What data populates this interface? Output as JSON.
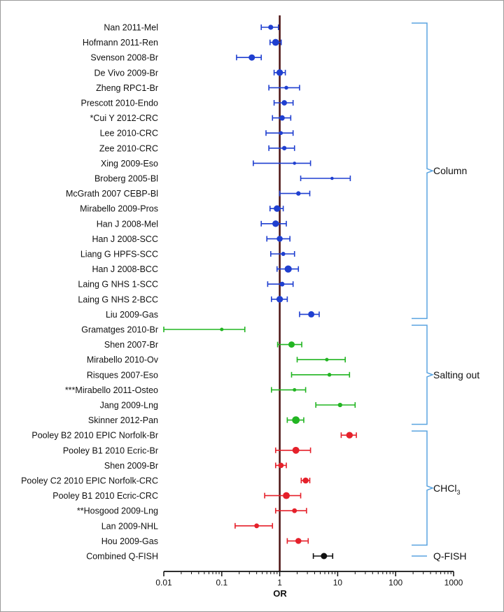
{
  "chart_data": {
    "type": "forest",
    "xlabel": "OR",
    "x_scale": "log",
    "xlim": [
      0.01,
      1000
    ],
    "x_ticks": [
      "0.01",
      "0.1",
      "1",
      "10",
      "100",
      "1000"
    ],
    "reference_line": 1,
    "colors": {
      "Column": "#1f3fd0",
      "Salting out": "#22b522",
      "CHCl3": "#e5202a",
      "Q-FISH": "#111111"
    },
    "groups": [
      {
        "key": "Column",
        "label": "Column",
        "sub": "",
        "first": 0,
        "last": 19
      },
      {
        "key": "Salting out",
        "label": "Salting out",
        "sub": "",
        "first": 20,
        "last": 26
      },
      {
        "key": "CHCl3",
        "label": "CHCl",
        "sub": "3",
        "first": 27,
        "last": 34
      },
      {
        "key": "Q-FISH",
        "label": "Q-FISH",
        "sub": "",
        "first": 35,
        "last": 35
      }
    ],
    "studies": [
      {
        "label": "Nan 2011-Mel",
        "group": "Column",
        "or": 0.7,
        "lo": 0.48,
        "hi": 0.95,
        "weight": 0.55
      },
      {
        "label": "Hofmann 2011-Ren",
        "group": "Column",
        "or": 0.85,
        "lo": 0.68,
        "hi": 1.06,
        "weight": 0.85
      },
      {
        "label": "Svenson 2008-Br",
        "group": "Column",
        "or": 0.33,
        "lo": 0.18,
        "hi": 0.48,
        "weight": 0.75
      },
      {
        "label": "De Vivo 2009-Br",
        "group": "Column",
        "or": 1.0,
        "lo": 0.8,
        "hi": 1.25,
        "weight": 0.8
      },
      {
        "label": "Zheng RPC1-Br",
        "group": "Column",
        "or": 1.3,
        "lo": 0.65,
        "hi": 2.2,
        "weight": 0.35
      },
      {
        "label": "Prescott 2010-Endo",
        "group": "Column",
        "or": 1.2,
        "lo": 0.8,
        "hi": 1.7,
        "weight": 0.6
      },
      {
        "label": "*Cui Y 2012-CRC",
        "group": "Column",
        "or": 1.1,
        "lo": 0.75,
        "hi": 1.55,
        "weight": 0.6
      },
      {
        "label": "Lee 2010-CRC",
        "group": "Column",
        "or": 1.05,
        "lo": 0.58,
        "hi": 1.7,
        "weight": 0.35
      },
      {
        "label": "Zee 2010-CRC",
        "group": "Column",
        "or": 1.2,
        "lo": 0.65,
        "hi": 1.8,
        "weight": 0.45
      },
      {
        "label": "Xing 2009-Eso",
        "group": "Column",
        "or": 1.8,
        "lo": 0.35,
        "hi": 3.4,
        "weight": 0.25
      },
      {
        "label": "Broberg 2005-Bl",
        "group": "Column",
        "or": 8.0,
        "lo": 2.3,
        "hi": 16.5,
        "weight": 0.25
      },
      {
        "label": "McGrath 2007 CEBP-Bl",
        "group": "Column",
        "or": 2.1,
        "lo": 1.0,
        "hi": 3.3,
        "weight": 0.45
      },
      {
        "label": "Mirabello 2009-Pros",
        "group": "Column",
        "or": 0.9,
        "lo": 0.68,
        "hi": 1.15,
        "weight": 0.8
      },
      {
        "label": "Han J 2008-Mel",
        "group": "Column",
        "or": 0.85,
        "lo": 0.48,
        "hi": 1.3,
        "weight": 0.8
      },
      {
        "label": "Han J 2008-SCC",
        "group": "Column",
        "or": 1.0,
        "lo": 0.6,
        "hi": 1.5,
        "weight": 0.7
      },
      {
        "label": "Liang G HPFS-SCC",
        "group": "Column",
        "or": 1.15,
        "lo": 0.7,
        "hi": 1.8,
        "weight": 0.4
      },
      {
        "label": "Han J 2008-BCC",
        "group": "Column",
        "or": 1.4,
        "lo": 0.9,
        "hi": 2.1,
        "weight": 0.9
      },
      {
        "label": "Laing G NHS 1-SCC",
        "group": "Column",
        "or": 1.1,
        "lo": 0.62,
        "hi": 1.7,
        "weight": 0.5
      },
      {
        "label": "Laing G NHS 2-BCC",
        "group": "Column",
        "or": 1.0,
        "lo": 0.72,
        "hi": 1.35,
        "weight": 0.8
      },
      {
        "label": "Liu 2009-Gas",
        "group": "Column",
        "or": 3.5,
        "lo": 2.2,
        "hi": 4.8,
        "weight": 0.75
      },
      {
        "label": "Gramatges 2010-Br",
        "group": "Salting out",
        "or": 0.1,
        "lo": 0.01,
        "hi": 0.25,
        "weight": 0.3
      },
      {
        "label": "Shen 2007-Br",
        "group": "Salting out",
        "or": 1.6,
        "lo": 0.92,
        "hi": 2.4,
        "weight": 0.75
      },
      {
        "label": "Mirabello 2010-Ov",
        "group": "Salting out",
        "or": 6.5,
        "lo": 2.0,
        "hi": 13.5,
        "weight": 0.3
      },
      {
        "label": "Risques 2007-Eso",
        "group": "Salting out",
        "or": 7.2,
        "lo": 1.6,
        "hi": 16.0,
        "weight": 0.35
      },
      {
        "label": "***Mirabello 2011-Osteo",
        "group": "Salting out",
        "or": 1.8,
        "lo": 0.72,
        "hi": 2.8,
        "weight": 0.3
      },
      {
        "label": "Jang 2009-Lng",
        "group": "Salting out",
        "or": 11.0,
        "lo": 4.2,
        "hi": 20.0,
        "weight": 0.45
      },
      {
        "label": "Skinner 2012-Pan",
        "group": "Salting out",
        "or": 1.9,
        "lo": 1.35,
        "hi": 2.6,
        "weight": 0.95
      },
      {
        "label": "Pooley B2 2010 EPIC Norfolk-Br",
        "group": "CHCl3",
        "or": 16.0,
        "lo": 11.5,
        "hi": 21.0,
        "weight": 0.8
      },
      {
        "label": "Pooley B1 2010 Ecric-Br",
        "group": "CHCl3",
        "or": 1.9,
        "lo": 0.85,
        "hi": 3.4,
        "weight": 0.85
      },
      {
        "label": "Shen 2009-Br",
        "group": "CHCl3",
        "or": 1.05,
        "lo": 0.85,
        "hi": 1.3,
        "weight": 0.6
      },
      {
        "label": "Pooley C2 2010 EPIC Norfolk-CRC",
        "group": "CHCl3",
        "or": 2.8,
        "lo": 2.35,
        "hi": 3.3,
        "weight": 0.7
      },
      {
        "label": "Pooley B1 2010 Ecric-CRC",
        "group": "CHCl3",
        "or": 1.3,
        "lo": 0.55,
        "hi": 2.3,
        "weight": 0.85
      },
      {
        "label": "**Hosgood 2009-Lng",
        "group": "CHCl3",
        "or": 1.8,
        "lo": 0.85,
        "hi": 2.9,
        "weight": 0.5
      },
      {
        "label": "Lan 2009-NHL",
        "group": "CHCl3",
        "or": 0.4,
        "lo": 0.17,
        "hi": 0.75,
        "weight": 0.5
      },
      {
        "label": "Hou 2009-Gas",
        "group": "CHCl3",
        "or": 2.1,
        "lo": 1.35,
        "hi": 3.1,
        "weight": 0.7
      },
      {
        "label": "Combined Q-FISH",
        "group": "Q-FISH",
        "or": 5.8,
        "lo": 3.8,
        "hi": 8.2,
        "weight": 0.75
      }
    ]
  }
}
